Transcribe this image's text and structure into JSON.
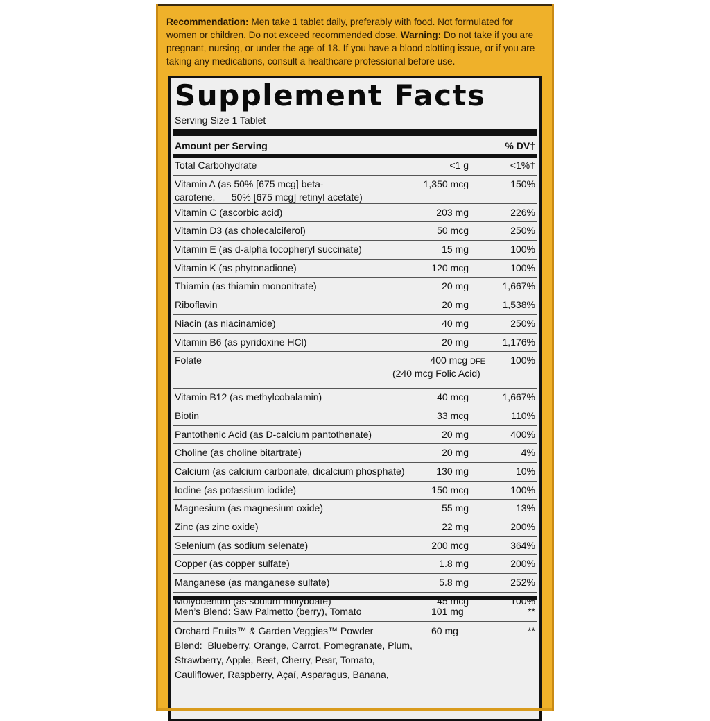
{
  "recommendation": {
    "label": "Recommendation:",
    "text": "Men take 1 tablet daily, preferably with food. Not formulated for women or children. Do not exceed recommended dose.",
    "warning_label": "Warning:",
    "warning_text": "Do not take if you are pregnant, nursing, or under the age of 18. If you have a blood clotting issue, or if you are taking any medications, consult a healthcare professional before use."
  },
  "facts": {
    "title": "Supplement Facts",
    "serving_size": "Serving Size 1 Tablet",
    "header_left": "Amount per Serving",
    "header_right": "% DV†"
  },
  "nutrients": [
    {
      "name": "Total Carbohydrate",
      "amount": "<1 g",
      "dv": "<1%†"
    },
    {
      "name": "Vitamin A (as 50% [675 mcg] beta-carotene,      50% [675 mcg] retinyl acetate)",
      "amount": "1,350 mcg",
      "dv": "150%"
    },
    {
      "name": "Vitamin C (ascorbic acid)",
      "amount": "203 mg",
      "dv": "226%"
    },
    {
      "name": "Vitamin D3 (as cholecalciferol)",
      "amount": "50 mcg",
      "dv": "250%"
    },
    {
      "name": "Vitamin E (as d-alpha tocopheryl succinate)",
      "amount": "15 mg",
      "dv": "100%"
    },
    {
      "name": "Vitamin K (as phytonadione)",
      "amount": "120 mcg",
      "dv": "100%"
    },
    {
      "name": "Thiamin (as thiamin mononitrate)",
      "amount": "20 mg",
      "dv": "1,667%"
    },
    {
      "name": "Riboflavin",
      "amount": "20 mg",
      "dv": "1,538%"
    },
    {
      "name": "Niacin (as niacinamide)",
      "amount": "40 mg",
      "dv": "250%"
    },
    {
      "name": "Vitamin B6 (as pyridoxine HCl)",
      "amount": "20 mg",
      "dv": "1,176%"
    },
    {
      "name": "Folate",
      "amount": "400 mcg",
      "amount_unit": "DFE",
      "amount_line2": "(240 mcg Folic Acid)",
      "dv": "100%"
    },
    {
      "name": "Vitamin B12 (as methylcobalamin)",
      "amount": "40 mcg",
      "dv": "1,667%"
    },
    {
      "name": "Biotin",
      "amount": "33 mcg",
      "dv": "110%"
    },
    {
      "name": "Pantothenic Acid (as D-calcium pantothenate)",
      "amount": "20 mg",
      "dv": "400%"
    },
    {
      "name": "Choline (as choline bitartrate)",
      "amount": "20 mg",
      "dv": "4%"
    },
    {
      "name": "Calcium (as calcium carbonate, dicalcium phosphate)",
      "amount": "130 mg",
      "dv": "10%"
    },
    {
      "name": "Iodine (as potassium iodide)",
      "amount": "150 mcg",
      "dv": "100%"
    },
    {
      "name": "Magnesium (as magnesium oxide)",
      "amount": "55 mg",
      "dv": "13%"
    },
    {
      "name": "Zinc (as zinc oxide)",
      "amount": "22 mg",
      "dv": "200%"
    },
    {
      "name": "Selenium (as sodium selenate)",
      "amount": "200 mcg",
      "dv": "364%"
    },
    {
      "name": "Copper (as copper sulfate)",
      "amount": "1.8 mg",
      "dv": "200%"
    },
    {
      "name": "Manganese (as manganese sulfate)",
      "amount": "5.8 mg",
      "dv": "252%"
    },
    {
      "name": "Molybdenum (as sodium molybdate)",
      "amount": "45 mcg",
      "dv": "100%"
    }
  ],
  "blends": [
    {
      "name": "Men’s Blend: Saw Palmetto (berry), Tomato",
      "amount": "101 mg",
      "dv": "**"
    },
    {
      "name": "Orchard Fruits™ & Garden Veggies™ Powder Blend:  Blueberry, Orange, Carrot, Pomegranate, Plum, Strawberry, Apple, Beet, Cherry, Pear, Tomato, Cauliflower, Raspberry, Açaí, Asparagus, Banana,",
      "amount": "60 mg",
      "dv": "**"
    }
  ]
}
